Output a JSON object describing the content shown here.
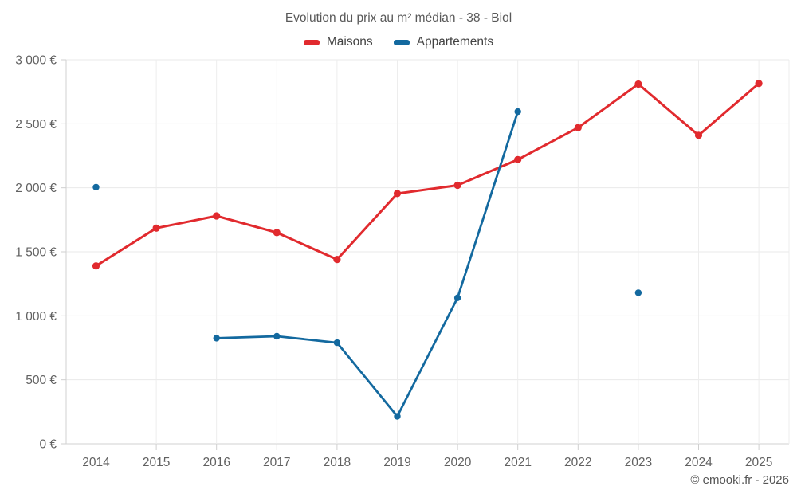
{
  "header": {
    "title": "Evolution du prix au m² médian - 38 - Biol"
  },
  "footer": {
    "attribution": "© emooki.fr - 2026"
  },
  "chart_data": {
    "type": "line",
    "title": "Evolution du prix au m² médian - 38 - Biol",
    "categories": [
      "2014",
      "2015",
      "2016",
      "2017",
      "2018",
      "2019",
      "2020",
      "2021",
      "2022",
      "2023",
      "2024",
      "2025"
    ],
    "series": [
      {
        "name": "Maisons",
        "color": "#e12a2e",
        "values": [
          1390,
          1685,
          1780,
          1650,
          1440,
          1955,
          2020,
          2220,
          2470,
          2810,
          2410,
          2815
        ]
      },
      {
        "name": "Appartements",
        "color": "#13699f",
        "values": [
          2005,
          null,
          825,
          840,
          790,
          215,
          1140,
          2595,
          null,
          1180,
          null,
          null
        ]
      }
    ],
    "xlabel": "",
    "ylabel": "",
    "ylim": [
      0,
      3000
    ],
    "y_ticks": [
      {
        "value": 0,
        "label": "0 €"
      },
      {
        "value": 500,
        "label": "500 €"
      },
      {
        "value": 1000,
        "label": "1 000 €"
      },
      {
        "value": 1500,
        "label": "1 500 €"
      },
      {
        "value": 2000,
        "label": "2 000 €"
      },
      {
        "value": 2500,
        "label": "2 500 €"
      },
      {
        "value": 3000,
        "label": "3 000 €"
      }
    ],
    "grid": true,
    "legend_position": "top"
  }
}
